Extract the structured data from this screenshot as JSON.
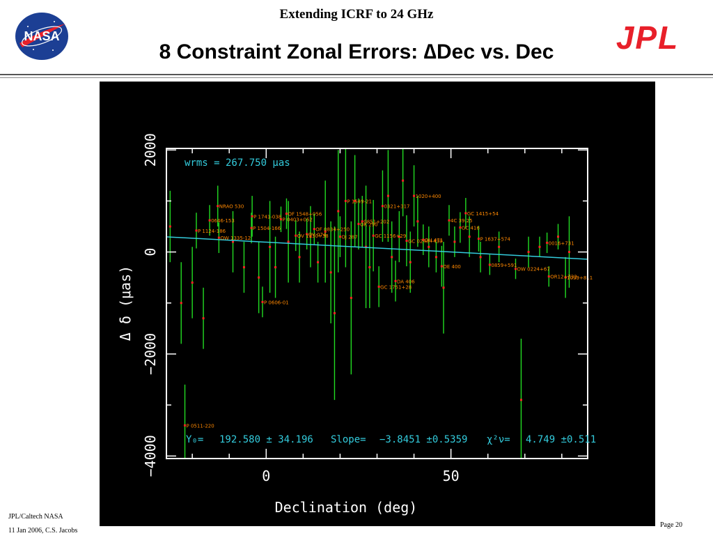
{
  "header": {
    "title": "Extending ICRF to 24 GHz",
    "slide_title": "8 Constraint Zonal Errors: ∆Dec vs. Dec",
    "nasa_logo_text": "NASA",
    "jpl_logo_text": "JPL"
  },
  "footer": {
    "org": "JPL/Caltech NASA",
    "date_author": "11 Jan 2006, C.S. Jacobs",
    "page": "Page 20"
  },
  "colors": {
    "error_bar": "#22dd22",
    "point": "#ff2222",
    "fit_line": "#33ccdd",
    "label": "#ff8800",
    "annotation": "#33ccdd",
    "axes": "#ffffff",
    "background": "#000000"
  },
  "chart_data": {
    "type": "scatter",
    "xlabel": "Declination (deg)",
    "ylabel": "Δ δ (μas)",
    "xlim": [
      -27,
      87
    ],
    "ylim": [
      -4050,
      2030
    ],
    "xticks": [
      0,
      50
    ],
    "yticks": [
      2000,
      0,
      -2000,
      -4000
    ],
    "wrms_label": "wrms = 267.750 μas",
    "fit_stats": {
      "y0_label": "Y₀=",
      "y0": "192.580 ± 34.196",
      "slope_label": "Slope=",
      "slope": "−3.8451 ±0.5359",
      "chi2_label": "χ²ν=",
      "chi2": "4.749 ±0.511"
    },
    "fit": {
      "y0": 192.58,
      "slope": -3.8451
    },
    "sources": [
      {
        "name": "NRAO 530",
        "dec": -13.1,
        "d": 900,
        "err": 400
      },
      {
        "name": "0646-153",
        "dec": -15.3,
        "d": 620,
        "err": 300
      },
      {
        "name": "P 1124-186",
        "dec": -18.9,
        "d": 420,
        "err": 350
      },
      {
        "name": "OW 1335-12",
        "dec": -12.8,
        "d": 280,
        "err": 300
      },
      {
        "name": "P 1741-038",
        "dec": -3.8,
        "d": 700,
        "err": 400
      },
      {
        "name": "OF 1548+056",
        "dec": 5.5,
        "d": 750,
        "err": 300
      },
      {
        "name": "P 0403+052",
        "dec": 4.0,
        "d": 640,
        "err": 250
      },
      {
        "name": "P 1504-166",
        "dec": -4.0,
        "d": 470,
        "err": 300
      },
      {
        "name": "OF 0834+250",
        "dec": 13.0,
        "d": 450,
        "err": 300
      },
      {
        "name": "OV 1130+38",
        "dec": 8.0,
        "d": 320,
        "err": 300
      },
      {
        "name": "OV 074",
        "dec": 11.0,
        "d": 350,
        "err": 300
      },
      {
        "name": "OJ 287",
        "dec": 20.0,
        "d": 300,
        "err": 400
      },
      {
        "name": "P 1549-21",
        "dec": 21.5,
        "d": 1000,
        "err": 1300
      },
      {
        "name": "0851+202",
        "dec": 26.0,
        "d": 600,
        "err": 500
      },
      {
        "name": "OK 290",
        "dec": 25.0,
        "d": 550,
        "err": 500
      },
      {
        "name": "0321+317",
        "dec": 31.5,
        "d": 900,
        "err": 700
      },
      {
        "name": "1020+400",
        "dec": 40.0,
        "d": 1100,
        "err": 600
      },
      {
        "name": "GC 1156+29",
        "dec": 29.0,
        "d": 320,
        "err": 700
      },
      {
        "name": "GC 0248+430",
        "dec": 38.0,
        "d": 220,
        "err": 500
      },
      {
        "name": "OH 471",
        "dec": 42.5,
        "d": 240,
        "err": 300
      },
      {
        "name": "4C 39.25",
        "dec": 49.5,
        "d": 620,
        "err": 300
      },
      {
        "name": "GC 1415+54",
        "dec": 54.0,
        "d": 760,
        "err": 300
      },
      {
        "name": "GC 416",
        "dec": 52.5,
        "d": 480,
        "err": 300
      },
      {
        "name": "P 1637+574",
        "dec": 57.5,
        "d": 260,
        "err": 250
      },
      {
        "name": "OE 400",
        "dec": 47.5,
        "d": -280,
        "err": 400
      },
      {
        "name": "0859+591",
        "dec": 60.5,
        "d": -250,
        "err": 200
      },
      {
        "name": "OW 0224+67",
        "dec": 67.5,
        "d": -330,
        "err": 200
      },
      {
        "name": "0016+731",
        "dec": 76.0,
        "d": 180,
        "err": 200
      },
      {
        "name": "OR12+732",
        "dec": 76.5,
        "d": -480,
        "err": 200
      },
      {
        "name": "1039+811",
        "dec": 81.0,
        "d": -500,
        "err": 400
      },
      {
        "name": "GC 1751+28",
        "dec": 30.5,
        "d": -680,
        "err": 400
      },
      {
        "name": "DA 406",
        "dec": 35.0,
        "d": -570,
        "err": 400
      },
      {
        "name": "P 0606-01",
        "dec": -1.0,
        "d": -980,
        "err": 300
      },
      {
        "name": "P 0511-220",
        "dec": -22.0,
        "d": -3400,
        "err": 800
      }
    ],
    "extra_points": [
      {
        "dec": -26,
        "d": 500,
        "err": 700
      },
      {
        "dec": -23,
        "d": -1000,
        "err": 800
      },
      {
        "dec": -20,
        "d": -600,
        "err": 700
      },
      {
        "dec": -17,
        "d": -1300,
        "err": 600
      },
      {
        "dec": -9,
        "d": 200,
        "err": 600
      },
      {
        "dec": -6,
        "d": -300,
        "err": 500
      },
      {
        "dec": -2,
        "d": -500,
        "err": 700
      },
      {
        "dec": 1,
        "d": 100,
        "err": 900
      },
      {
        "dec": 2.5,
        "d": -300,
        "err": 600
      },
      {
        "dec": 6,
        "d": 200,
        "err": 800
      },
      {
        "dec": 9,
        "d": -100,
        "err": 500
      },
      {
        "dec": 12,
        "d": 300,
        "err": 600
      },
      {
        "dec": 14,
        "d": -200,
        "err": 400
      },
      {
        "dec": 16,
        "d": 400,
        "err": 1000
      },
      {
        "dec": 17.5,
        "d": -400,
        "err": 1000
      },
      {
        "dec": 18.5,
        "d": -1200,
        "err": 1700
      },
      {
        "dec": 19.5,
        "d": 800,
        "err": 1200
      },
      {
        "dec": 23,
        "d": -900,
        "err": 1500
      },
      {
        "dec": 24,
        "d": 1000,
        "err": 900
      },
      {
        "dec": 27,
        "d": 100,
        "err": 1200
      },
      {
        "dec": 28,
        "d": -300,
        "err": 800
      },
      {
        "dec": 33,
        "d": 1100,
        "err": 900
      },
      {
        "dec": 34,
        "d": -100,
        "err": 700
      },
      {
        "dec": 36,
        "d": 300,
        "err": 500
      },
      {
        "dec": 37,
        "d": 1400,
        "err": 700
      },
      {
        "dec": 39,
        "d": -200,
        "err": 600
      },
      {
        "dec": 41,
        "d": 600,
        "err": 500
      },
      {
        "dec": 44,
        "d": 100,
        "err": 400
      },
      {
        "dec": 46,
        "d": -100,
        "err": 300
      },
      {
        "dec": 48,
        "d": -700,
        "err": 900
      },
      {
        "dec": 51,
        "d": 200,
        "err": 300
      },
      {
        "dec": 55,
        "d": 300,
        "err": 400
      },
      {
        "dec": 58,
        "d": -100,
        "err": 300
      },
      {
        "dec": 63,
        "d": 100,
        "err": 300
      },
      {
        "dec": 69,
        "d": -2900,
        "err": 1200
      },
      {
        "dec": 71,
        "d": 0,
        "err": 300
      },
      {
        "dec": 74,
        "d": 100,
        "err": 200
      },
      {
        "dec": 79,
        "d": 300,
        "err": 250
      },
      {
        "dec": 82,
        "d": 0,
        "err": 700
      }
    ]
  }
}
